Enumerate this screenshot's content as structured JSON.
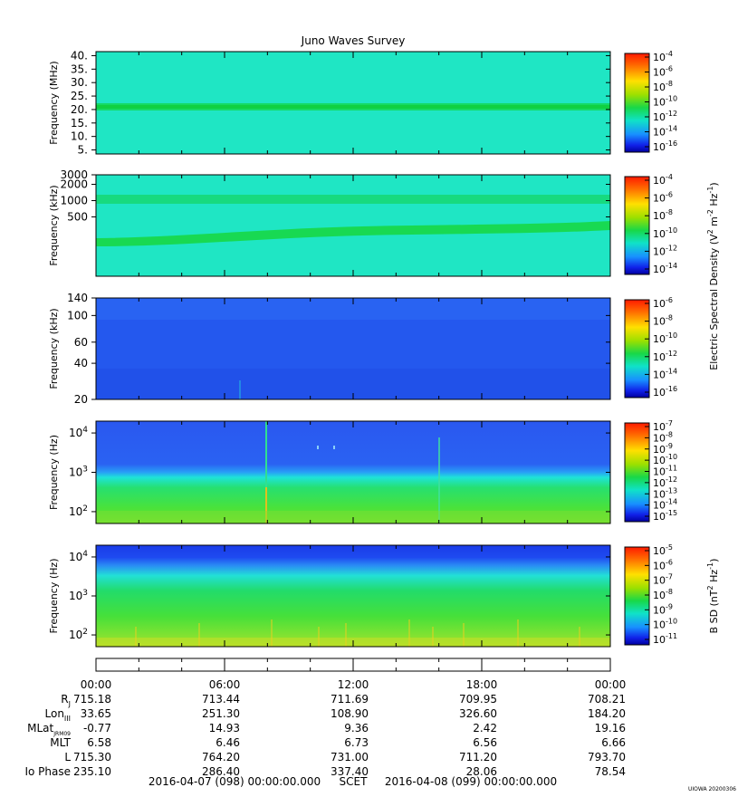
{
  "chart_data": {
    "type": "heatmap",
    "title": "Juno Waves Survey",
    "panels": [
      {
        "ylabel": "Frequency (MHz)",
        "yscale": "linear",
        "ylim": [
          3.5,
          41.5
        ],
        "yticks": [
          {
            "v": 5,
            "t": "5."
          },
          {
            "v": 10,
            "t": "10."
          },
          {
            "v": 15,
            "t": "15."
          },
          {
            "v": 20,
            "t": "20."
          },
          {
            "v": 25,
            "t": "25."
          },
          {
            "v": 30,
            "t": "30."
          },
          {
            "v": 35,
            "t": "35."
          },
          {
            "v": 40,
            "t": "40."
          }
        ],
        "cbar_exp": [
          -4,
          -6,
          -8,
          -10,
          -12,
          -14,
          -16
        ]
      },
      {
        "ylabel": "Frequency (kHz)",
        "yscale": "log",
        "ylim": [
          40,
          3000
        ],
        "yticks": [
          {
            "v": 500,
            "t": "500"
          },
          {
            "v": 1000,
            "t": "1000"
          },
          {
            "v": 2000,
            "t": "2000"
          },
          {
            "v": 3000,
            "t": "3000"
          }
        ],
        "cbar_exp": [
          -4,
          -6,
          -8,
          -10,
          -12,
          -14
        ]
      },
      {
        "ylabel": "Frequency (kHz)",
        "yscale": "log",
        "ylim": [
          20,
          140
        ],
        "yticks": [
          {
            "v": 20,
            "t": "20"
          },
          {
            "v": 40,
            "t": "40"
          },
          {
            "v": 60,
            "t": "60"
          },
          {
            "v": 100,
            "t": "100"
          },
          {
            "v": 140,
            "t": "140"
          }
        ],
        "cbar_exp": [
          -6,
          -8,
          -10,
          -12,
          -14,
          -16
        ]
      },
      {
        "ylabel": "Frequency (Hz)",
        "yscale": "log",
        "ylim": [
          50,
          20000
        ],
        "yticks": [
          {
            "v": 100,
            "t": "10",
            "sup": "2"
          },
          {
            "v": 1000,
            "t": "10",
            "sup": "3"
          },
          {
            "v": 10000,
            "t": "10",
            "sup": "4"
          }
        ],
        "cbar_exp": [
          -7,
          -8,
          -9,
          -10,
          -11,
          -12,
          -13,
          -14,
          -15
        ]
      },
      {
        "ylabel": "Frequency (Hz)",
        "yscale": "log",
        "ylim": [
          50,
          20000
        ],
        "yticks": [
          {
            "v": 100,
            "t": "10",
            "sup": "2"
          },
          {
            "v": 1000,
            "t": "10",
            "sup": "3"
          },
          {
            "v": 10000,
            "t": "10",
            "sup": "4"
          }
        ],
        "cbar_exp": [
          -5,
          -6,
          -7,
          -8,
          -9,
          -10,
          -11
        ]
      }
    ],
    "colorbar_labels": {
      "electric": {
        "pre": "Electric Spectral Density (V",
        "sup1": "2",
        "mid": " m",
        "sup2": "-2",
        "mid2": " Hz",
        "sup3": "-1",
        "post": ")"
      },
      "magnetic": {
        "pre": "B SD (nT",
        "sup1": "2",
        "mid": " Hz",
        "sup2": "-1",
        "post": ")"
      }
    },
    "x_ticks": [
      "00:00",
      "06:00",
      "12:00",
      "18:00",
      "00:00"
    ],
    "ephemeris": [
      {
        "label": "R",
        "sub": "J",
        "values": [
          "715.18",
          "713.44",
          "711.69",
          "709.95",
          "708.21"
        ]
      },
      {
        "label": "Lon",
        "sub": "III",
        "values": [
          "33.65",
          "251.30",
          "108.90",
          "326.60",
          "184.20"
        ]
      },
      {
        "label": "MLat",
        "sub": "JRM09",
        "values": [
          "-0.77",
          "14.93",
          "9.36",
          "2.42",
          "19.16"
        ]
      },
      {
        "label": "MLT",
        "sub": "",
        "values": [
          "6.58",
          "6.46",
          "6.73",
          "6.56",
          "6.66"
        ]
      },
      {
        "label": "L",
        "sub": "",
        "values": [
          "715.30",
          "764.20",
          "731.00",
          "711.20",
          "793.70"
        ]
      },
      {
        "label": "Io Phase",
        "sub": "",
        "values": [
          "235.10",
          "286.40",
          "337.40",
          "28.06",
          "78.54"
        ]
      }
    ],
    "footer": {
      "start": "2016-04-07 (098) 00:00:00.000",
      "scet": "SCET",
      "end": "2016-04-08 (099) 00:00:00.000"
    },
    "stamp": "UIOWA 20200306"
  },
  "colors": {
    "cyan_bg": "#1fe6c4",
    "band": "#14d85a",
    "blue": "#2a5cf0",
    "green": "#3ee03a"
  }
}
